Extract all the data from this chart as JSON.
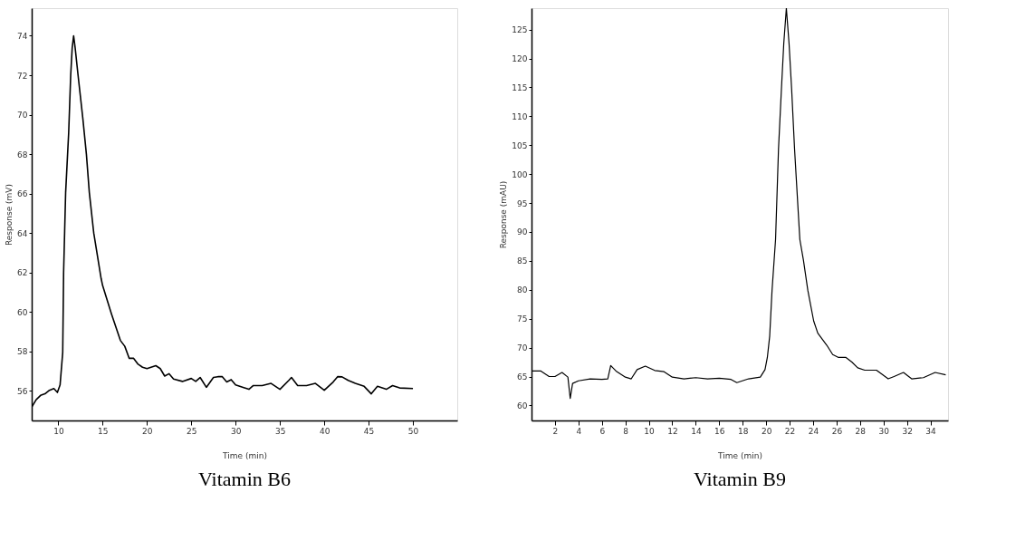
{
  "chart_data": [
    {
      "type": "line",
      "title": "Vitamin B6",
      "xlabel": "Time (min)",
      "ylabel": "Response (mV)",
      "xlim": [
        7,
        55
      ],
      "ylim": [
        54.5,
        75.4
      ],
      "xticks": [
        10,
        15,
        20,
        25,
        30,
        35,
        40,
        45,
        50
      ],
      "yticks": [
        56,
        58,
        60,
        62,
        64,
        66,
        68,
        70,
        72,
        74
      ],
      "grid": false,
      "series": [
        {
          "color": "#000000",
          "x": [
            7,
            7.5,
            8,
            8.5,
            9,
            9.5,
            9.9,
            10.2,
            10.5,
            10.6,
            10.83,
            11.17,
            11.4,
            11.57,
            11.73,
            11.9,
            12.23,
            12.77,
            13.17,
            13.5,
            14.0,
            14.83,
            15,
            16,
            17,
            17.5,
            18,
            18.5,
            19,
            19.5,
            20,
            21,
            21.5,
            22,
            22.5,
            23,
            24,
            25,
            25.5,
            26,
            26.7,
            27.5,
            28,
            28.5,
            29,
            29.5,
            30,
            31,
            31.5,
            32,
            33,
            34,
            35,
            36,
            36.3,
            37,
            38,
            39,
            40,
            41,
            41.5,
            42,
            42.7,
            43.5,
            44.5,
            45.3,
            46,
            47,
            47.7,
            48.5,
            50
          ],
          "values": [
            55.17,
            55.55,
            55.77,
            55.85,
            56.03,
            56.12,
            55.92,
            56.3,
            57.95,
            62.0,
            66.06,
            69.07,
            72.0,
            73.4,
            74.0,
            73.4,
            72.0,
            69.8,
            68.0,
            66.06,
            64.0,
            61.7,
            61.34,
            59.9,
            58.56,
            58.26,
            57.65,
            57.65,
            57.35,
            57.2,
            57.13,
            57.28,
            57.13,
            56.75,
            56.87,
            56.6,
            56.48,
            56.63,
            56.48,
            56.68,
            56.18,
            56.68,
            56.72,
            56.72,
            56.45,
            56.57,
            56.3,
            56.15,
            56.08,
            56.27,
            56.27,
            56.38,
            56.08,
            56.53,
            56.68,
            56.27,
            56.27,
            56.38,
            56.03,
            56.45,
            56.72,
            56.71,
            56.53,
            56.38,
            56.23,
            55.85,
            56.23,
            56.08,
            56.27,
            56.15,
            56.12
          ]
        }
      ]
    },
    {
      "type": "line",
      "title": "Vitamin B9",
      "xlabel": "Time (min)",
      "ylabel": "Response (mAU)",
      "xlim": [
        0,
        35.5
      ],
      "ylim": [
        57.4,
        128.7
      ],
      "xticks": [
        2,
        4,
        6,
        8,
        10,
        12,
        14,
        16,
        18,
        20,
        22,
        24,
        26,
        28,
        30,
        32,
        34
      ],
      "yticks": [
        60,
        65,
        70,
        75,
        80,
        85,
        90,
        95,
        100,
        105,
        110,
        115,
        120,
        125
      ],
      "grid": false,
      "series": [
        {
          "color": "#000000",
          "x": [
            0.05,
            0.8,
            1.5,
            2,
            2.6,
            3.1,
            3.3,
            3.5,
            4,
            5,
            6,
            6.5,
            6.75,
            7.2,
            8,
            8.5,
            9,
            9.7,
            10.5,
            11.3,
            12,
            13,
            14,
            15,
            16,
            17,
            17.5,
            18.5,
            19.5,
            19.9,
            20.1,
            20.3,
            20.5,
            20.8,
            21.05,
            21.3,
            21.5,
            21.72,
            21.95,
            22.17,
            22.42,
            22.87,
            23.17,
            23.55,
            24.05,
            24.4,
            25.17,
            25.67,
            26.17,
            26.8,
            27.3,
            27.8,
            28.4,
            29.4,
            30.4,
            30.9,
            31.7,
            32.4,
            33.4,
            34.4,
            35.3
          ],
          "values": [
            65.95,
            65.95,
            65.0,
            65.0,
            65.7,
            64.9,
            61.2,
            63.8,
            64.26,
            64.6,
            64.5,
            64.6,
            66.9,
            65.95,
            64.9,
            64.6,
            66.2,
            66.8,
            66.05,
            65.84,
            64.9,
            64.6,
            64.8,
            64.6,
            64.7,
            64.5,
            63.95,
            64.6,
            64.9,
            66.2,
            68.3,
            72.0,
            79.9,
            88.7,
            104.3,
            114.7,
            122.6,
            128.7,
            122.6,
            114.7,
            104.3,
            88.7,
            85.2,
            79.9,
            74.6,
            72.5,
            70.4,
            68.8,
            68.3,
            68.3,
            67.5,
            66.5,
            66.1,
            66.1,
            64.6,
            65.0,
            65.7,
            64.6,
            64.8,
            65.7,
            65.3
          ]
        }
      ]
    }
  ]
}
